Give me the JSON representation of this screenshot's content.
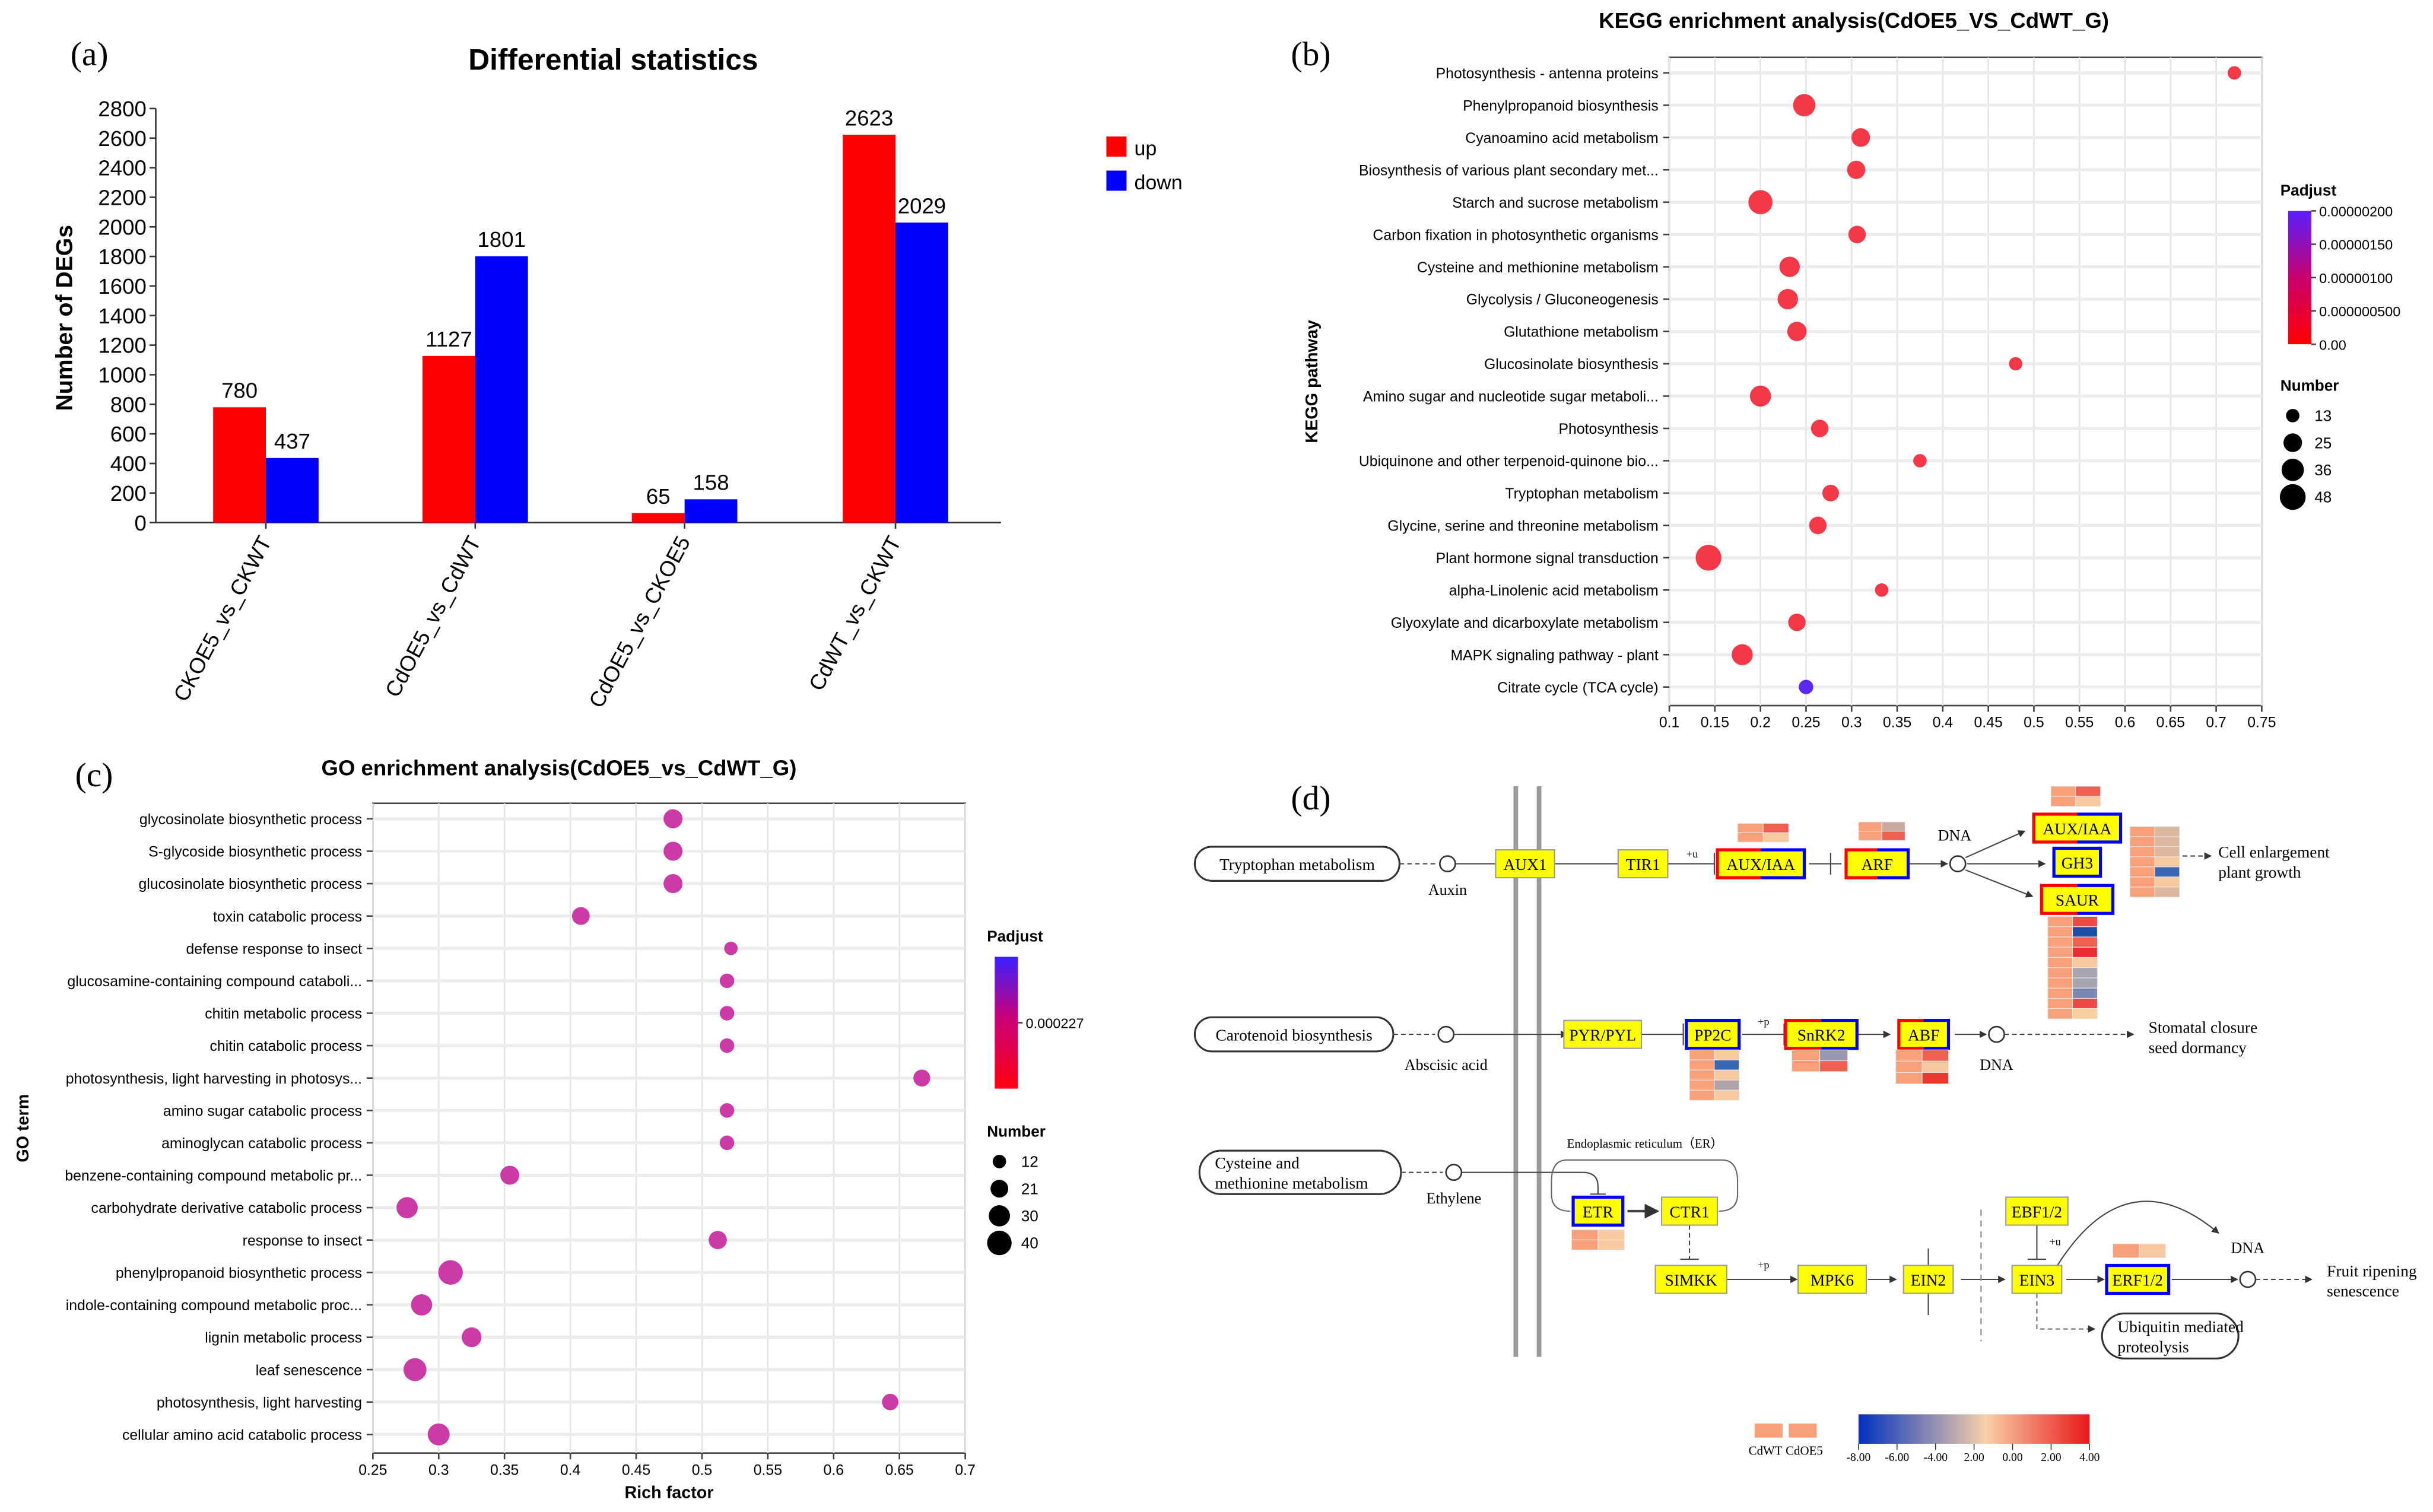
{
  "panel_labels": {
    "a": "(a)",
    "b": "(b)",
    "c": "(c)",
    "d": "(d)"
  },
  "chart_data": [
    {
      "type": "bar",
      "title": "Differential statistics",
      "xlabel": "",
      "ylabel": "Number of DEGs",
      "ylim": [
        0,
        2800
      ],
      "yticks": [
        "0",
        "200",
        "400",
        "600",
        "800",
        "1000",
        "1200",
        "1400",
        "1600",
        "1800",
        "2000",
        "2200",
        "2400",
        "2600",
        "2800"
      ],
      "categories": [
        "CKOE5_vs_CKWT",
        "CdOE5_vs_CdWT",
        "CdOE5_vs_CKOE5",
        "CdWT_vs_CKWT"
      ],
      "series": [
        {
          "name": "up",
          "color": "#ff0000",
          "values": [
            780,
            1127,
            65,
            2623
          ]
        },
        {
          "name": "down",
          "color": "#0000ff",
          "values": [
            437,
            1801,
            158,
            2029
          ]
        }
      ],
      "legend": "top-right"
    },
    {
      "type": "scatter",
      "title": "KEGG enrichment analysis(CdOE5_VS_CdWT_G)",
      "xlabel": "",
      "ylabel": "KEGG pathway",
      "xlim": [
        0.1,
        0.75
      ],
      "xticks": [
        "0.1",
        "0.15",
        "0.2",
        "0.25",
        "0.3",
        "0.35",
        "0.4",
        "0.45",
        "0.5",
        "0.55",
        "0.6",
        "0.65",
        "0.7",
        "0.75"
      ],
      "grid": true,
      "legend_color_title": "Padjust",
      "legend_color_ticks": [
        "0.00000200",
        "0.00000150",
        "0.00000100",
        "0.000000500",
        "0.00"
      ],
      "legend_size_title": "Number",
      "legend_sizes": [
        13,
        25,
        36,
        48
      ],
      "points": [
        {
          "term": "Photosynthesis - antenna proteins",
          "x": 0.72,
          "number": 13,
          "color": "#f43848"
        },
        {
          "term": "Phenylpropanoid biosynthesis",
          "x": 0.248,
          "number": 36,
          "color": "#f43848"
        },
        {
          "term": "Cyanoamino acid metabolism",
          "x": 0.31,
          "number": 25,
          "color": "#f43848"
        },
        {
          "term": "Biosynthesis of various plant secondary met...",
          "x": 0.305,
          "number": 24,
          "color": "#f43848"
        },
        {
          "term": "Starch and sucrose metabolism",
          "x": 0.2,
          "number": 42,
          "color": "#f43848"
        },
        {
          "term": "Carbon fixation in photosynthetic organisms",
          "x": 0.306,
          "number": 22,
          "color": "#f43848"
        },
        {
          "term": "Cysteine and methionine metabolism",
          "x": 0.232,
          "number": 30,
          "color": "#f43848"
        },
        {
          "term": "Glycolysis / Gluconeogenesis",
          "x": 0.23,
          "number": 30,
          "color": "#f43848"
        },
        {
          "term": "Glutathione metabolism",
          "x": 0.24,
          "number": 27,
          "color": "#f43848"
        },
        {
          "term": "Glucosinolate biosynthesis",
          "x": 0.48,
          "number": 13,
          "color": "#f43848"
        },
        {
          "term": "Amino sugar and nucleotide sugar metaboli...",
          "x": 0.2,
          "number": 32,
          "color": "#f43848"
        },
        {
          "term": "Photosynthesis",
          "x": 0.265,
          "number": 22,
          "color": "#f43848"
        },
        {
          "term": "Ubiquinone and other terpenoid-quinone bio...",
          "x": 0.375,
          "number": 13,
          "color": "#f43848"
        },
        {
          "term": "Tryptophan metabolism",
          "x": 0.277,
          "number": 20,
          "color": "#f43848"
        },
        {
          "term": "Glycine, serine and threonine metabolism",
          "x": 0.263,
          "number": 22,
          "color": "#f43848"
        },
        {
          "term": "Plant hormone signal transduction",
          "x": 0.143,
          "number": 48,
          "color": "#f43848"
        },
        {
          "term": "alpha-Linolenic acid metabolism",
          "x": 0.333,
          "number": 13,
          "color": "#f43848"
        },
        {
          "term": "Glyoxylate and dicarboxylate metabolism",
          "x": 0.24,
          "number": 22,
          "color": "#f43848"
        },
        {
          "term": "MAPK signaling pathway - plant",
          "x": 0.18,
          "number": 32,
          "color": "#f43848"
        },
        {
          "term": "Citrate cycle (TCA cycle)",
          "x": 0.25,
          "number": 15,
          "color": "#5a28f0"
        }
      ]
    },
    {
      "type": "scatter",
      "title": "GO enrichment analysis(CdOE5_vs_CdWT_G)",
      "xlabel": "Rich factor",
      "ylabel": "GO term",
      "xlim": [
        0.25,
        0.7
      ],
      "xticks": [
        "0.25",
        "0.3",
        "0.35",
        "0.4",
        "0.45",
        "0.5",
        "0.55",
        "0.6",
        "0.65",
        "0.7"
      ],
      "grid": true,
      "legend_color_title": "Padjust",
      "legend_color_ticks": [
        "0.000227"
      ],
      "legend_size_title": "Number",
      "legend_sizes": [
        12,
        21,
        30,
        40
      ],
      "points": [
        {
          "term": "glycosinolate biosynthetic process",
          "x": 0.478,
          "number": 24,
          "color": "#cc3aa8"
        },
        {
          "term": "S-glycoside biosynthetic process",
          "x": 0.478,
          "number": 24,
          "color": "#cc3aa8"
        },
        {
          "term": "glucosinolate biosynthetic process",
          "x": 0.478,
          "number": 24,
          "color": "#cc3aa8"
        },
        {
          "term": "toxin catabolic process",
          "x": 0.408,
          "number": 21,
          "color": "#cc3aa8"
        },
        {
          "term": "defense response to insect",
          "x": 0.522,
          "number": 12,
          "color": "#cc3aa8"
        },
        {
          "term": "glucosamine-containing compound cataboli...",
          "x": 0.519,
          "number": 14,
          "color": "#cc3aa8"
        },
        {
          "term": "chitin metabolic process",
          "x": 0.519,
          "number": 14,
          "color": "#cc3aa8"
        },
        {
          "term": "chitin catabolic process",
          "x": 0.519,
          "number": 14,
          "color": "#cc3aa8"
        },
        {
          "term": "photosynthesis, light harvesting in photosys...",
          "x": 0.667,
          "number": 19,
          "color": "#cc3aa8"
        },
        {
          "term": "amino sugar catabolic process",
          "x": 0.519,
          "number": 14,
          "color": "#cc3aa8"
        },
        {
          "term": "aminoglycan catabolic process",
          "x": 0.519,
          "number": 14,
          "color": "#cc3aa8"
        },
        {
          "term": "benzene-containing compound metabolic pr...",
          "x": 0.354,
          "number": 24,
          "color": "#cc3aa8"
        },
        {
          "term": "carbohydrate derivative catabolic process",
          "x": 0.276,
          "number": 30,
          "color": "#cc3aa8"
        },
        {
          "term": "response to insect",
          "x": 0.512,
          "number": 22,
          "color": "#cc3aa8"
        },
        {
          "term": "phenylpropanoid biosynthetic process",
          "x": 0.309,
          "number": 40,
          "color": "#cc3aa8"
        },
        {
          "term": "indole-containing compound metabolic proc...",
          "x": 0.287,
          "number": 30,
          "color": "#cc3aa8"
        },
        {
          "term": "lignin metabolic process",
          "x": 0.325,
          "number": 26,
          "color": "#cc3aa8"
        },
        {
          "term": "leaf senescence",
          "x": 0.282,
          "number": 35,
          "color": "#cc3aa8"
        },
        {
          "term": "photosynthesis, light harvesting",
          "x": 0.643,
          "number": 18,
          "color": "#cc3aa8"
        },
        {
          "term": "cellular amino acid catabolic process",
          "x": 0.3,
          "number": 32,
          "color": "#cc3aa8"
        }
      ]
    }
  ],
  "pathway": {
    "inputs": [
      "Tryptophan metabolism",
      "Carotenoid biosynthesis",
      "Cysteine and",
      "methionine metabolism"
    ],
    "hormones": [
      "Auxin",
      "Abscisic acid",
      "Ethylene"
    ],
    "genes": {
      "aux1": "AUX1",
      "tir1": "TIR1",
      "aux_iaa": "AUX/IAA",
      "arf": "ARF",
      "aux_iaa2": "AUX/IAA",
      "gh3": "GH3",
      "saur": "SAUR",
      "pyr": "PYR/PYL",
      "pp2c": "PP2C",
      "snrk2": "SnRK2",
      "abf": "ABF",
      "etr": "ETR",
      "ctr1": "CTR1",
      "simkk": "SIMKK",
      "mpk6": "MPK6",
      "ein2": "EIN2",
      "ein3": "EIN3",
      "ebf": "EBF1/2",
      "erf": "ERF1/2"
    },
    "labels": {
      "dna": "DNA",
      "cell1": "Cell enlargement",
      "cell2": "plant growth",
      "stom1": "Stomatal closure",
      "stom2": "seed dormancy",
      "fruit1": "Fruit ripening",
      "fruit2": "senescence",
      "er": "Endoplasmic reticulum（ER）",
      "ubi1": "Ubiquitin mediated",
      "ubi2": "proteolysis",
      "u": "+u",
      "p": "+p"
    },
    "heatmaps": {
      "aux_iaa": [
        [
          "#f7a07a",
          "#f06050"
        ],
        [
          "#f7a07a",
          "#f8c8a0"
        ]
      ],
      "arf": [
        [
          "#f7a07a",
          "#c8aaa0"
        ],
        [
          "#f7a07a",
          "#f06050"
        ]
      ],
      "aux_iaa2": [
        [
          "#f7a07a",
          "#f06050"
        ],
        [
          "#f7a07a",
          "#f8c8a0"
        ]
      ],
      "gh3": [
        [
          "#f7a07a",
          "#dcb8a0"
        ],
        [
          "#f7a07a",
          "#dcb8a0"
        ],
        [
          "#f7a07a",
          "#dcb8a0"
        ],
        [
          "#f7a07a",
          "#f8c8a0"
        ],
        [
          "#f7a07a",
          "#3a68b0"
        ],
        [
          "#f7a07a",
          "#f8c8a0"
        ],
        [
          "#f7a07a",
          "#dcb8a0"
        ]
      ],
      "saur": [
        [
          "#f7a07a",
          "#f04848"
        ],
        [
          "#f7a07a",
          "#1c50a8"
        ],
        [
          "#f7a07a",
          "#f06050"
        ],
        [
          "#f7a07a",
          "#e83030"
        ],
        [
          "#f7a07a",
          "#f8c8a0"
        ],
        [
          "#f7a07a",
          "#a8a4b0"
        ],
        [
          "#f7a07a",
          "#a8a4b0"
        ],
        [
          "#f7a07a",
          "#7888b0"
        ],
        [
          "#f7a07a",
          "#f04848"
        ],
        [
          "#f7a07a",
          "#f8d0a0"
        ]
      ],
      "pp2c": [
        [
          "#f7a07a",
          "#f8c8a0"
        ],
        [
          "#f7a07a",
          "#3a68b0"
        ],
        [
          "#f7a07a",
          "#f8c8a0"
        ],
        [
          "#f7a07a",
          "#b0a4a8"
        ],
        [
          "#f7a07a",
          "#f8c8a0"
        ]
      ],
      "snrk2": [
        [
          "#f7a07a",
          "#9898b0"
        ],
        [
          "#f7a07a",
          "#f06050"
        ]
      ],
      "abf": [
        [
          "#f7a07a",
          "#f06050"
        ],
        [
          "#f7a07a",
          "#f8c8a0"
        ],
        [
          "#f7a07a",
          "#e83830"
        ]
      ],
      "etr": [
        [
          "#f7a07a",
          "#f8c8a0"
        ],
        [
          "#f7a07a",
          "#f8c8a0"
        ]
      ],
      "erf": [
        [
          "#f7a07a",
          "#f8c8a0"
        ]
      ]
    },
    "legend": {
      "samples": [
        "CdWT",
        "CdOE5"
      ],
      "scale_ticks": [
        "-8.00",
        "-6.00",
        "-4.00",
        "2.00",
        "0.00",
        "2.00",
        "4.00"
      ],
      "scale_colors": [
        "#0030c0",
        "#f8d0a8",
        "#e81818"
      ]
    }
  }
}
